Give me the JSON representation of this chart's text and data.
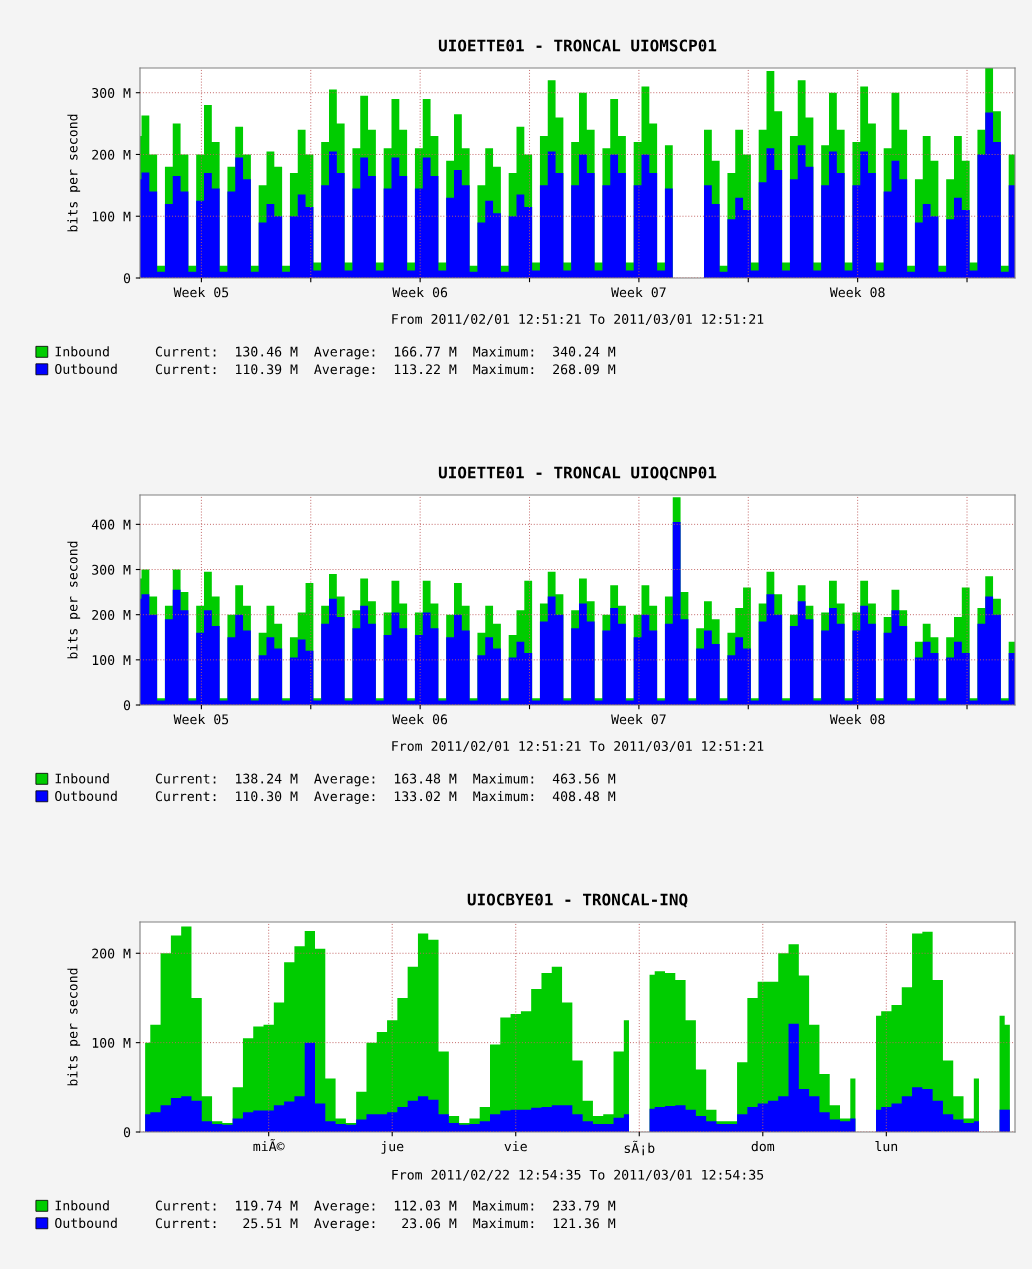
{
  "chart_data": [
    {
      "type": "area",
      "title": "UIOETTE01 - TRONCAL UIOMSCP01",
      "xlabel": "From 2011/02/01 12:51:21 To 2011/03/01 12:51:21",
      "ylabel": "bits per second",
      "grid": true,
      "legend": "bottom left",
      "xlim": [
        "2011-02-01T12:51",
        "2011-03-01T12:51"
      ],
      "xticks": [
        {
          "value": "2011-02-03T12:00",
          "label": "Week 05"
        },
        {
          "value": "2011-02-07",
          "label": null
        },
        {
          "value": "2011-02-10T12:00",
          "label": "Week 06"
        },
        {
          "value": "2011-02-14",
          "label": null
        },
        {
          "value": "2011-02-17T12:00",
          "label": "Week 07"
        },
        {
          "value": "2011-02-21",
          "label": null
        },
        {
          "value": "2011-02-24T12:00",
          "label": "Week 08"
        },
        {
          "value": "2011-02-28",
          "label": null
        }
      ],
      "ylim": [
        0,
        340
      ],
      "yticks": [
        0,
        {
          "value": 100,
          "label": "100 M"
        },
        {
          "value": 200,
          "label": "200 M"
        },
        {
          "value": 300,
          "label": "300 M"
        }
      ],
      "x": [
        "2011-02-01T12:51",
        "2011-02-01T14:00",
        "2011-02-01T20:00",
        "2011-02-02T02:00",
        "2011-02-02T08:00",
        "2011-02-02T14:00",
        "2011-02-02T20:00",
        "2011-02-03T02:00",
        "2011-02-03T08:00",
        "2011-02-03T14:00",
        "2011-02-03T20:00",
        "2011-02-04T02:00",
        "2011-02-04T08:00",
        "2011-02-04T14:00",
        "2011-02-04T20:00",
        "2011-02-05T02:00",
        "2011-02-05T08:00",
        "2011-02-05T14:00",
        "2011-02-05T20:00",
        "2011-02-06T02:00",
        "2011-02-06T08:00",
        "2011-02-06T14:00",
        "2011-02-06T20:00",
        "2011-02-07T02:00",
        "2011-02-07T08:00",
        "2011-02-07T14:00",
        "2011-02-07T20:00",
        "2011-02-08T02:00",
        "2011-02-08T08:00",
        "2011-02-08T14:00",
        "2011-02-08T20:00",
        "2011-02-09T02:00",
        "2011-02-09T08:00",
        "2011-02-09T14:00",
        "2011-02-09T20:00",
        "2011-02-10T02:00",
        "2011-02-10T08:00",
        "2011-02-10T14:00",
        "2011-02-10T20:00",
        "2011-02-11T02:00",
        "2011-02-11T08:00",
        "2011-02-11T14:00",
        "2011-02-11T20:00",
        "2011-02-12T02:00",
        "2011-02-12T08:00",
        "2011-02-12T14:00",
        "2011-02-12T20:00",
        "2011-02-13T02:00",
        "2011-02-13T08:00",
        "2011-02-13T14:00",
        "2011-02-13T20:00",
        "2011-02-14T02:00",
        "2011-02-14T08:00",
        "2011-02-14T14:00",
        "2011-02-14T20:00",
        "2011-02-15T02:00",
        "2011-02-15T08:00",
        "2011-02-15T14:00",
        "2011-02-15T20:00",
        "2011-02-16T02:00",
        "2011-02-16T08:00",
        "2011-02-16T14:00",
        "2011-02-16T20:00",
        "2011-02-17T02:00",
        "2011-02-17T08:00",
        "2011-02-17T14:00",
        "2011-02-17T20:00",
        "2011-02-18T02:00",
        "2011-02-18T08:00",
        "2011-02-18T14:00",
        "2011-02-18T20:00",
        "2011-02-19T02:00",
        "2011-02-19T08:00",
        "2011-02-19T14:00",
        "2011-02-19T20:00",
        "2011-02-20T02:00",
        "2011-02-20T08:00",
        "2011-02-20T14:00",
        "2011-02-20T20:00",
        "2011-02-21T02:00",
        "2011-02-21T08:00",
        "2011-02-21T14:00",
        "2011-02-21T20:00",
        "2011-02-22T02:00",
        "2011-02-22T08:00",
        "2011-02-22T14:00",
        "2011-02-22T20:00",
        "2011-02-23T02:00",
        "2011-02-23T08:00",
        "2011-02-23T14:00",
        "2011-02-23T20:00",
        "2011-02-24T02:00",
        "2011-02-24T08:00",
        "2011-02-24T14:00",
        "2011-02-24T20:00",
        "2011-02-25T02:00",
        "2011-02-25T08:00",
        "2011-02-25T14:00",
        "2011-02-25T20:00",
        "2011-02-26T02:00",
        "2011-02-26T08:00",
        "2011-02-26T14:00",
        "2011-02-26T20:00",
        "2011-02-27T02:00",
        "2011-02-27T08:00",
        "2011-02-27T14:00",
        "2011-02-27T20:00",
        "2011-02-28T02:00",
        "2011-02-28T08:00",
        "2011-02-28T14:00",
        "2011-02-28T20:00",
        "2011-03-01T02:00",
        "2011-03-01T08:00",
        "2011-03-01T12:51"
      ],
      "series": [
        {
          "name": "Inbound",
          "color": "#00cc00",
          "values": [
            230,
            263,
            200,
            20,
            180,
            250,
            200,
            20,
            200,
            280,
            220,
            20,
            180,
            245,
            200,
            20,
            150,
            205,
            180,
            20,
            170,
            240,
            200,
            25,
            220,
            305,
            250,
            25,
            210,
            295,
            240,
            25,
            210,
            290,
            240,
            25,
            210,
            290,
            230,
            25,
            190,
            265,
            210,
            20,
            150,
            210,
            180,
            20,
            170,
            245,
            200,
            25,
            230,
            320,
            260,
            25,
            220,
            300,
            240,
            25,
            210,
            290,
            230,
            25,
            220,
            310,
            250,
            25,
            215,
            300,
            null,
            null,
            null,
            240,
            190,
            20,
            170,
            240,
            200,
            25,
            240,
            335,
            270,
            25,
            230,
            320,
            260,
            25,
            215,
            300,
            240,
            25,
            220,
            310,
            250,
            25,
            210,
            300,
            240,
            20,
            160,
            230,
            190,
            20,
            160,
            230,
            190,
            25,
            240,
            340,
            270,
            20,
            200,
            130
          ]
        },
        {
          "name": "Outbound",
          "color": "#0000ff",
          "values": [
            160,
            171,
            140,
            10,
            120,
            165,
            140,
            10,
            125,
            170,
            145,
            10,
            140,
            195,
            160,
            10,
            90,
            120,
            100,
            10,
            100,
            135,
            115,
            12,
            150,
            205,
            170,
            12,
            145,
            195,
            165,
            12,
            145,
            195,
            165,
            12,
            145,
            195,
            165,
            12,
            130,
            175,
            150,
            10,
            90,
            125,
            105,
            10,
            100,
            135,
            115,
            12,
            150,
            205,
            170,
            12,
            150,
            200,
            170,
            12,
            150,
            200,
            170,
            12,
            150,
            200,
            170,
            12,
            145,
            195,
            null,
            null,
            null,
            150,
            120,
            10,
            95,
            130,
            110,
            12,
            155,
            210,
            175,
            12,
            160,
            215,
            180,
            12,
            150,
            205,
            170,
            12,
            150,
            205,
            170,
            12,
            140,
            190,
            160,
            10,
            90,
            120,
            100,
            10,
            95,
            130,
            110,
            12,
            200,
            268,
            220,
            10,
            150,
            110
          ]
        }
      ],
      "annotations": [
        "Current:  130.46 M  Average:  166.77 M  Maximum:  340.24 M",
        "Current:  110.39 M  Average:  113.22 M  Maximum:  268.09 M"
      ]
    },
    {
      "type": "area",
      "title": "UIOETTE01 - TRONCAL UIOQCNP01",
      "xlabel": "From 2011/02/01 12:51:21 To 2011/03/01 12:51:21",
      "ylabel": "bits per second",
      "grid": true,
      "legend": "bottom left",
      "xlim": [
        "2011-02-01T12:51",
        "2011-03-01T12:51"
      ],
      "xticks": [
        {
          "value": "2011-02-03T12:00",
          "label": "Week 05"
        },
        {
          "value": "2011-02-07",
          "label": null
        },
        {
          "value": "2011-02-10T12:00",
          "label": "Week 06"
        },
        {
          "value": "2011-02-14",
          "label": null
        },
        {
          "value": "2011-02-17T12:00",
          "label": "Week 07"
        },
        {
          "value": "2011-02-21",
          "label": null
        },
        {
          "value": "2011-02-24T12:00",
          "label": "Week 08"
        },
        {
          "value": "2011-02-28",
          "label": null
        }
      ],
      "ylim": [
        0,
        465
      ],
      "yticks": [
        0,
        {
          "value": 100,
          "label": "100 M"
        },
        {
          "value": 200,
          "label": "200 M"
        },
        {
          "value": 300,
          "label": "300 M"
        },
        {
          "value": 400,
          "label": "400 M"
        }
      ],
      "x": [
        "2011-02-01T12:51",
        "2011-02-01T14:00",
        "2011-02-01T20:00",
        "2011-02-02T02:00",
        "2011-02-02T08:00",
        "2011-02-02T14:00",
        "2011-02-02T20:00",
        "2011-02-03T02:00",
        "2011-02-03T08:00",
        "2011-02-03T14:00",
        "2011-02-03T20:00",
        "2011-02-04T02:00",
        "2011-02-04T08:00",
        "2011-02-04T14:00",
        "2011-02-04T20:00",
        "2011-02-05T02:00",
        "2011-02-05T08:00",
        "2011-02-05T14:00",
        "2011-02-05T20:00",
        "2011-02-06T02:00",
        "2011-02-06T08:00",
        "2011-02-06T14:00",
        "2011-02-06T20:00",
        "2011-02-07T02:00",
        "2011-02-07T08:00",
        "2011-02-07T14:00",
        "2011-02-07T20:00",
        "2011-02-08T02:00",
        "2011-02-08T08:00",
        "2011-02-08T14:00",
        "2011-02-08T20:00",
        "2011-02-09T02:00",
        "2011-02-09T08:00",
        "2011-02-09T14:00",
        "2011-02-09T20:00",
        "2011-02-10T02:00",
        "2011-02-10T08:00",
        "2011-02-10T14:00",
        "2011-02-10T20:00",
        "2011-02-11T02:00",
        "2011-02-11T08:00",
        "2011-02-11T14:00",
        "2011-02-11T20:00",
        "2011-02-12T02:00",
        "2011-02-12T08:00",
        "2011-02-12T14:00",
        "2011-02-12T20:00",
        "2011-02-13T02:00",
        "2011-02-13T08:00",
        "2011-02-13T14:00",
        "2011-02-13T20:00",
        "2011-02-14T02:00",
        "2011-02-14T08:00",
        "2011-02-14T14:00",
        "2011-02-14T20:00",
        "2011-02-15T02:00",
        "2011-02-15T08:00",
        "2011-02-15T14:00",
        "2011-02-15T20:00",
        "2011-02-16T02:00",
        "2011-02-16T08:00",
        "2011-02-16T14:00",
        "2011-02-16T20:00",
        "2011-02-17T02:00",
        "2011-02-17T08:00",
        "2011-02-17T14:00",
        "2011-02-17T20:00",
        "2011-02-18T02:00",
        "2011-02-18T08:00",
        "2011-02-18T14:00",
        "2011-02-18T20:00",
        "2011-02-19T02:00",
        "2011-02-19T08:00",
        "2011-02-19T14:00",
        "2011-02-19T20:00",
        "2011-02-20T02:00",
        "2011-02-20T08:00",
        "2011-02-20T14:00",
        "2011-02-20T20:00",
        "2011-02-21T02:00",
        "2011-02-21T08:00",
        "2011-02-21T14:00",
        "2011-02-21T20:00",
        "2011-02-22T02:00",
        "2011-02-22T08:00",
        "2011-02-22T14:00",
        "2011-02-22T20:00",
        "2011-02-23T02:00",
        "2011-02-23T08:00",
        "2011-02-23T14:00",
        "2011-02-23T20:00",
        "2011-02-24T02:00",
        "2011-02-24T08:00",
        "2011-02-24T14:00",
        "2011-02-24T20:00",
        "2011-02-25T02:00",
        "2011-02-25T08:00",
        "2011-02-25T14:00",
        "2011-02-25T20:00",
        "2011-02-26T02:00",
        "2011-02-26T08:00",
        "2011-02-26T14:00",
        "2011-02-26T20:00",
        "2011-02-27T02:00",
        "2011-02-27T08:00",
        "2011-02-27T14:00",
        "2011-02-27T20:00",
        "2011-02-28T02:00",
        "2011-02-28T08:00",
        "2011-02-28T14:00",
        "2011-02-28T20:00",
        "2011-03-01T02:00",
        "2011-03-01T08:00",
        "2011-03-01T12:51"
      ],
      "series": [
        {
          "name": "Inbound",
          "color": "#00cc00",
          "values": [
            280,
            300,
            240,
            15,
            220,
            300,
            250,
            15,
            220,
            295,
            240,
            15,
            200,
            265,
            220,
            15,
            160,
            220,
            180,
            15,
            150,
            205,
            270,
            15,
            220,
            290,
            240,
            15,
            210,
            280,
            230,
            15,
            205,
            275,
            225,
            15,
            205,
            275,
            225,
            15,
            200,
            270,
            220,
            15,
            160,
            220,
            180,
            15,
            155,
            210,
            275,
            15,
            225,
            295,
            245,
            15,
            210,
            280,
            230,
            15,
            200,
            265,
            220,
            15,
            200,
            265,
            220,
            15,
            240,
            460,
            250,
            15,
            170,
            230,
            190,
            15,
            160,
            215,
            260,
            15,
            225,
            295,
            245,
            15,
            200,
            265,
            220,
            15,
            205,
            275,
            225,
            15,
            205,
            275,
            225,
            15,
            195,
            255,
            210,
            15,
            140,
            180,
            150,
            15,
            150,
            195,
            260,
            15,
            215,
            285,
            235,
            15,
            140,
            138
          ]
        },
        {
          "name": "Outbound",
          "color": "#0000ff",
          "values": [
            235,
            245,
            200,
            10,
            190,
            255,
            210,
            10,
            160,
            210,
            175,
            10,
            150,
            200,
            165,
            10,
            110,
            150,
            125,
            10,
            105,
            145,
            120,
            10,
            180,
            235,
            195,
            10,
            170,
            220,
            180,
            10,
            155,
            205,
            170,
            10,
            155,
            205,
            170,
            10,
            150,
            200,
            165,
            10,
            110,
            150,
            125,
            10,
            105,
            140,
            115,
            10,
            185,
            240,
            200,
            10,
            170,
            225,
            185,
            10,
            165,
            215,
            180,
            10,
            150,
            200,
            165,
            10,
            180,
            405,
            190,
            10,
            125,
            165,
            135,
            10,
            110,
            150,
            125,
            10,
            185,
            245,
            200,
            10,
            175,
            230,
            190,
            10,
            165,
            215,
            180,
            10,
            165,
            220,
            180,
            10,
            160,
            210,
            175,
            10,
            105,
            140,
            115,
            10,
            105,
            140,
            115,
            10,
            180,
            240,
            200,
            10,
            115,
            110
          ]
        }
      ],
      "annotations": [
        "Current:  138.24 M  Average:  163.48 M  Maximum:  463.56 M",
        "Current:  110.30 M  Average:  133.02 M  Maximum:  408.48 M"
      ]
    },
    {
      "type": "area",
      "title": "UIOCBYE01 - TRONCAL-INQ",
      "xlabel": "From 2011/02/22 12:54:35 To 2011/03/01 12:54:35",
      "ylabel": "bits per second",
      "grid": true,
      "legend": "bottom left",
      "ylim": [
        0,
        235
      ],
      "yticks": [
        0,
        {
          "value": 100,
          "label": "100 M"
        },
        {
          "value": 200,
          "label": "200 M"
        }
      ],
      "categories": [
        null,
        null,
        null,
        null,
        null,
        null,
        null,
        null,
        null,
        null,
        null,
        null,
        "miÃ©",
        null,
        null,
        null,
        null,
        null,
        null,
        null,
        null,
        null,
        null,
        null,
        "jue",
        null,
        null,
        null,
        null,
        null,
        null,
        null,
        null,
        null,
        null,
        null,
        "vie",
        null,
        null,
        null,
        null,
        null,
        null,
        null,
        null,
        null,
        null,
        null,
        "sÃ¡b",
        null,
        null,
        null,
        null,
        null,
        null,
        null,
        null,
        null,
        null,
        null,
        "dom",
        null,
        null,
        null,
        null,
        null,
        null,
        null,
        null,
        null,
        null,
        null,
        "lun",
        null,
        null,
        null,
        null,
        null,
        null,
        null,
        null,
        null,
        null,
        null,
        null
      ],
      "series": [
        {
          "name": "Inbound",
          "color": "#00cc00",
          "values": [
            100,
            120,
            200,
            220,
            230,
            150,
            40,
            12,
            10,
            50,
            105,
            118,
            120,
            145,
            190,
            208,
            225,
            205,
            60,
            15,
            10,
            45,
            100,
            112,
            125,
            150,
            185,
            222,
            215,
            90,
            18,
            10,
            15,
            28,
            98,
            128,
            132,
            135,
            160,
            178,
            185,
            145,
            80,
            35,
            18,
            20,
            90,
            125,
            null,
            176,
            180,
            178,
            170,
            125,
            70,
            25,
            12,
            12,
            78,
            150,
            168,
            168,
            200,
            210,
            175,
            120,
            65,
            30,
            15,
            60,
            null,
            130,
            135,
            142,
            162,
            222,
            224,
            170,
            80,
            40,
            15,
            60,
            null,
            130,
            120
          ]
        },
        {
          "name": "Outbound",
          "color": "#0000ff",
          "values": [
            20,
            22,
            30,
            38,
            40,
            35,
            12,
            9,
            8,
            15,
            22,
            24,
            24,
            30,
            34,
            40,
            100,
            32,
            12,
            9,
            8,
            14,
            20,
            20,
            22,
            28,
            35,
            40,
            36,
            20,
            10,
            8,
            9,
            12,
            20,
            24,
            25,
            25,
            27,
            28,
            30,
            30,
            20,
            12,
            9,
            9,
            16,
            20,
            null,
            26,
            28,
            29,
            30,
            25,
            18,
            12,
            9,
            9,
            20,
            28,
            32,
            35,
            40,
            121,
            48,
            40,
            22,
            14,
            12,
            15,
            null,
            25,
            28,
            32,
            40,
            50,
            48,
            35,
            20,
            14,
            10,
            12,
            null,
            25,
            25
          ]
        }
      ],
      "annotations": [
        "Current:  119.74 M  Average:  112.03 M  Maximum:  233.79 M",
        "Current:   25.51 M  Average:   23.06 M  Maximum:  121.36 M"
      ]
    }
  ]
}
